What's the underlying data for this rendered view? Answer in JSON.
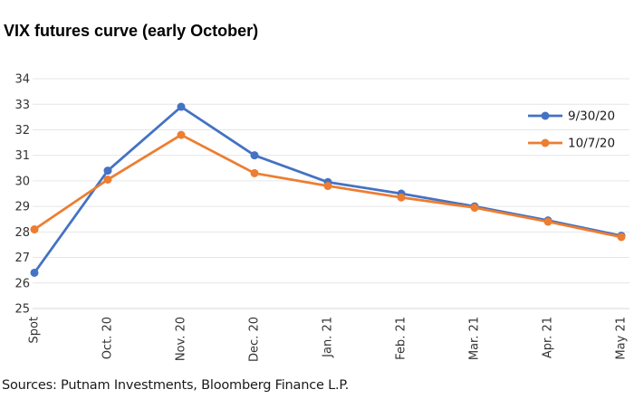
{
  "title": "VIX futures curve (early October)",
  "sources": "Sources: Putnam Investments, Bloomberg Finance L.P.",
  "chart_data": {
    "type": "line",
    "title": "VIX futures curve (early October)",
    "categories": [
      "Spot",
      "Oct. 20",
      "Nov. 20",
      "Dec. 20",
      "Jan. 21",
      "Feb. 21",
      "Mar. 21",
      "Apr. 21",
      "May 21"
    ],
    "series": [
      {
        "name": "9/30/20",
        "color": "#4472C4",
        "values": [
          26.4,
          30.4,
          32.9,
          31.0,
          29.95,
          29.5,
          29.0,
          28.45,
          27.85
        ]
      },
      {
        "name": "10/7/20",
        "color": "#ED7D31",
        "values": [
          28.1,
          30.05,
          31.8,
          30.3,
          29.8,
          29.35,
          28.95,
          28.4,
          27.8
        ]
      }
    ],
    "xlabel": "",
    "ylabel": "",
    "ylim": [
      25,
      34
    ],
    "yticks": [
      25,
      26,
      27,
      28,
      29,
      30,
      31,
      32,
      33,
      34
    ],
    "grid": true,
    "legend_position": "inside-top-right",
    "marker": "circle"
  }
}
